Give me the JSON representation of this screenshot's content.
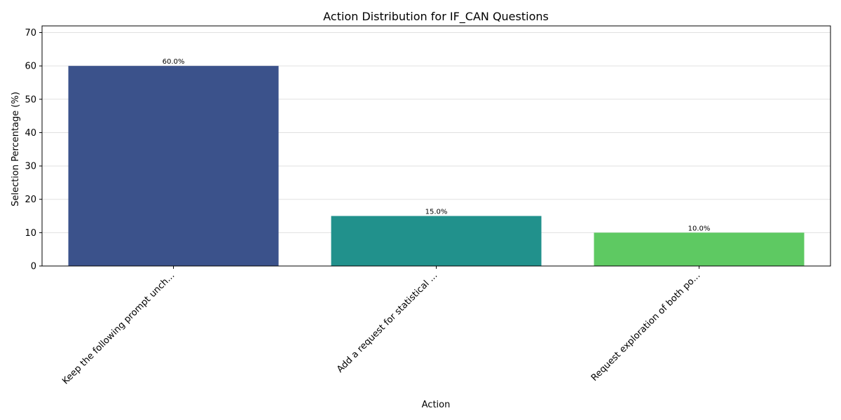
{
  "chart_data": {
    "type": "bar",
    "title": "Action Distribution for IF_CAN Questions",
    "xlabel": "Action",
    "ylabel": "Selection Percentage (%)",
    "categories": [
      "Keep the following prompt unch...",
      "Add a request for statistical ...",
      "Request exploration of both po..."
    ],
    "values": [
      60.0,
      15.0,
      10.0
    ],
    "data_labels": [
      "60.0%",
      "15.0%",
      "10.0%"
    ],
    "colors": [
      "#3b528b",
      "#21918c",
      "#5ec962"
    ],
    "ylim": [
      0,
      72
    ],
    "yticks": [
      0,
      10,
      20,
      30,
      40,
      50,
      60,
      70
    ],
    "grid": true
  }
}
